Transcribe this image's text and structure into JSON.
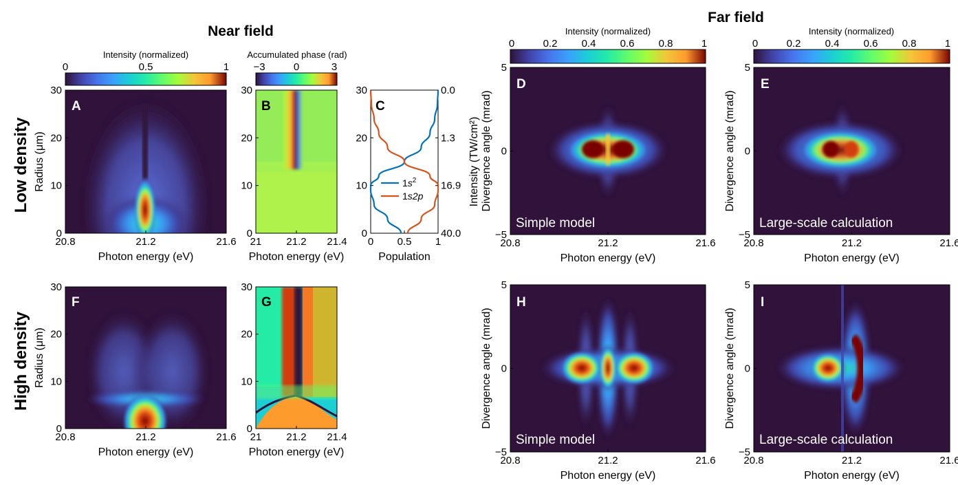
{
  "section_titles": {
    "near_field": "Near field",
    "far_field": "Far field"
  },
  "row_labels": {
    "low": "Low density",
    "high": "High density"
  },
  "colorbars": [
    {
      "label": "Intensity (normalized)",
      "ticks": [
        "0",
        "0.5",
        "1"
      ]
    },
    {
      "label": "Accumulated phase (rad)",
      "ticks": [
        "−3",
        "0",
        "3"
      ]
    },
    {
      "label": "Intensity (normalized)",
      "ticks": [
        "0",
        "0.2",
        "0.4",
        "0.6",
        "0.8",
        "1"
      ]
    },
    {
      "label": "Intensity (normalized)",
      "ticks": [
        "0",
        "0.2",
        "0.4",
        "0.6",
        "0.8",
        "1"
      ]
    }
  ],
  "colors": {
    "plot_bg": "#30123b",
    "series_1s2": "#0072bd",
    "series_1s2p": "#d95319",
    "annotation_text": "#ffffff"
  },
  "chart_data": [
    {
      "panel": "A",
      "type": "heatmap",
      "xlabel": "Photon energy (eV)",
      "ylabel": "Radius (μm)",
      "xlim": [
        20.8,
        21.6
      ],
      "ylim": [
        0,
        30
      ],
      "xticks": [
        "20.8",
        "21.2",
        "21.6"
      ],
      "yticks": [
        "0",
        "10",
        "20",
        "30"
      ],
      "colorbar": "Intensity (normalized)",
      "feature": "bright line at 21.2 eV strongest near radius 0, splitting above ~8 μm"
    },
    {
      "panel": "B",
      "type": "heatmap",
      "xlabel": "Photon energy (eV)",
      "ylabel": "",
      "xlim": [
        21.0,
        21.4
      ],
      "ylim": [
        0,
        30
      ],
      "xticks": [
        "21",
        "21.2",
        "21.4"
      ],
      "yticks": [
        "0",
        "10",
        "20",
        "30"
      ],
      "colorbar": "Accumulated phase (rad)"
    },
    {
      "panel": "C",
      "type": "line",
      "xlabel": "Population",
      "ylabel": "",
      "ylabel_right": "Intensity (TW/cm²)",
      "xlim": [
        0,
        1
      ],
      "ylim": [
        0,
        30
      ],
      "xticks": [
        "0",
        "0.5",
        "1"
      ],
      "yticks": [
        "0",
        "10",
        "20",
        "30"
      ],
      "yticks_right": [
        "40.0",
        "16.9",
        "1.3",
        "0.0"
      ],
      "series": [
        {
          "name": "1s²",
          "name_parts": [
            "1",
            "s",
            "2"
          ],
          "radius": [
            0,
            3,
            6,
            9,
            10,
            12,
            15,
            18,
            21,
            24,
            27,
            30
          ],
          "population": [
            0.45,
            0.25,
            0.05,
            0.0,
            0.0,
            0.12,
            0.5,
            0.75,
            0.88,
            0.95,
            0.99,
            1.0
          ]
        },
        {
          "name": "1s2p",
          "name_parts": [
            "1",
            "s2p"
          ],
          "radius": [
            0,
            3,
            6,
            9,
            10,
            12,
            15,
            18,
            21,
            24,
            27,
            30
          ],
          "population": [
            0.55,
            0.75,
            0.95,
            1.0,
            1.0,
            0.88,
            0.5,
            0.25,
            0.12,
            0.05,
            0.01,
            0.0
          ]
        }
      ]
    },
    {
      "panel": "D",
      "type": "heatmap",
      "xlabel": "Photon energy (eV)",
      "ylabel": "Divergence angle (mrad)",
      "xlim": [
        20.8,
        21.6
      ],
      "ylim": [
        -5,
        5
      ],
      "xticks": [
        "20.8",
        "21.2",
        "21.6"
      ],
      "yticks": [
        "−5",
        "0",
        "5"
      ],
      "annotation": "Simple model",
      "colorbar": "Intensity (normalized)"
    },
    {
      "panel": "E",
      "type": "heatmap",
      "xlabel": "Photon energy (eV)",
      "ylabel": "Divergence angle (mrad)",
      "xlim": [
        20.8,
        21.6
      ],
      "ylim": [
        -5,
        5
      ],
      "xticks": [
        "20.8",
        "21.2",
        "21.6"
      ],
      "yticks": [
        "−5",
        "0",
        "5"
      ],
      "annotation": "Large-scale calculation",
      "colorbar": "Intensity (normalized)"
    },
    {
      "panel": "F",
      "type": "heatmap",
      "xlabel": "Photon energy (eV)",
      "ylabel": "Radius (μm)",
      "xlim": [
        20.8,
        21.6
      ],
      "ylim": [
        0,
        30
      ],
      "xticks": [
        "20.8",
        "21.2",
        "21.6"
      ],
      "yticks": [
        "0",
        "10",
        "20",
        "30"
      ],
      "colorbar": "Intensity (normalized)"
    },
    {
      "panel": "G",
      "type": "heatmap",
      "xlabel": "Photon energy (eV)",
      "ylabel": "",
      "xlim": [
        21.0,
        21.4
      ],
      "ylim": [
        0,
        30
      ],
      "xticks": [
        "21",
        "21.2",
        "21.4"
      ],
      "yticks": [
        "0",
        "10",
        "20",
        "30"
      ],
      "colorbar": "Accumulated phase (rad)"
    },
    {
      "panel": "H",
      "type": "heatmap",
      "xlabel": "Photon energy (eV)",
      "ylabel": "Divergence angle (mrad)",
      "xlim": [
        20.8,
        21.6
      ],
      "ylim": [
        -5,
        5
      ],
      "xticks": [
        "20.8",
        "21.2",
        "21.6"
      ],
      "yticks": [
        "−5",
        "0",
        "5"
      ],
      "annotation": "Simple model",
      "colorbar": "Intensity (normalized)"
    },
    {
      "panel": "I",
      "type": "heatmap",
      "xlabel": "Photon energy (eV)",
      "ylabel": "Divergence angle (mrad)",
      "xlim": [
        20.8,
        21.6
      ],
      "ylim": [
        -5,
        5
      ],
      "xticks": [
        "20.8",
        "21.2",
        "21.6"
      ],
      "yticks": [
        "−5",
        "0",
        "5"
      ],
      "annotation": "Large-scale calculation",
      "colorbar": "Intensity (normalized)"
    }
  ]
}
